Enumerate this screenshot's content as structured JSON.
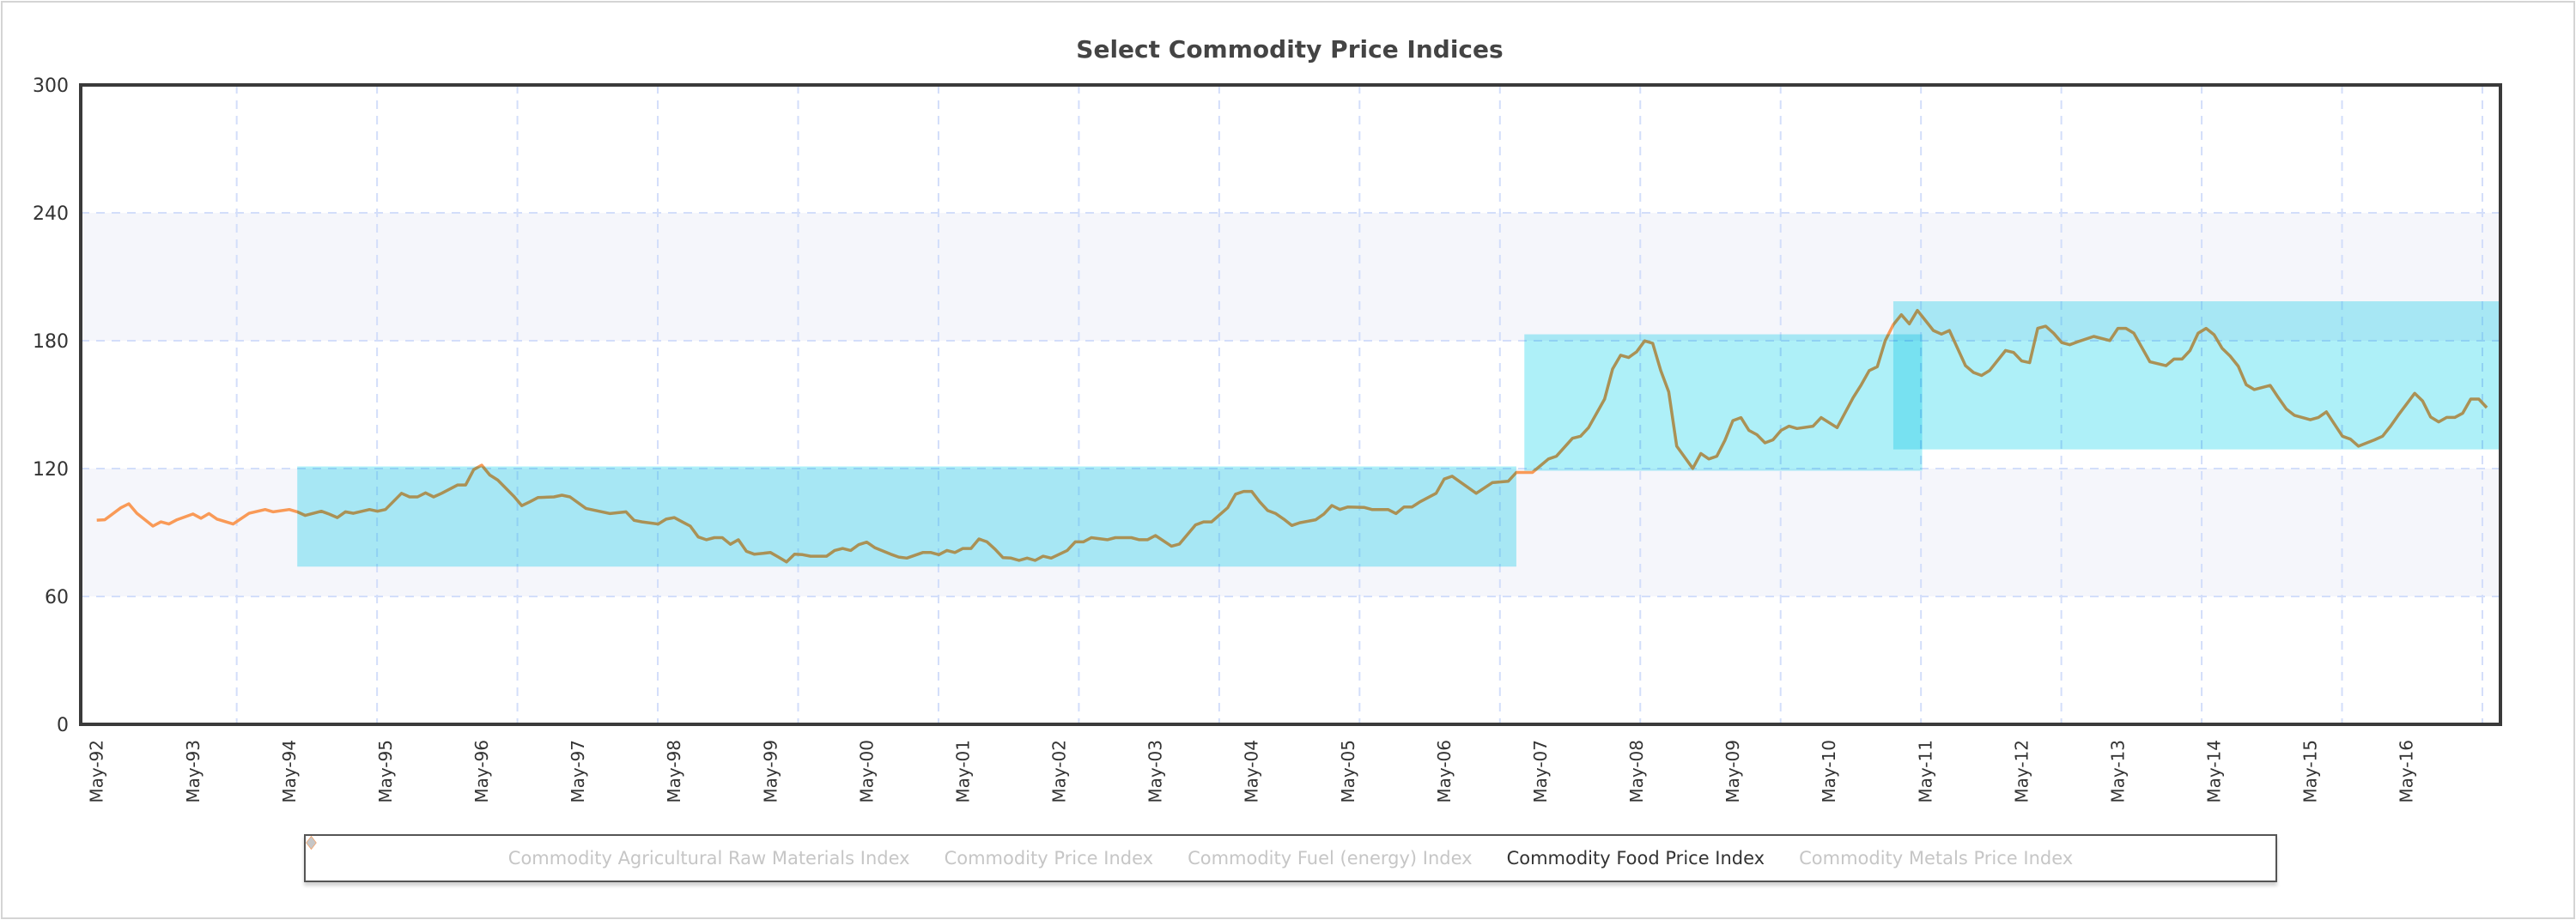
{
  "chart_data": {
    "type": "line",
    "title": "Select Commodity Price Indices",
    "xlabel": "",
    "ylabel": "",
    "x_unit": "months since May-92 (monthly data, May-92 = 0)",
    "x_range": [
      -2,
      299.7
    ],
    "ylim": [
      0,
      300
    ],
    "y_ticks": [
      0,
      60,
      120,
      180,
      240,
      300
    ],
    "x_tick_labels": [
      "May-92",
      "May-93",
      "May-94",
      "May-95",
      "May-96",
      "May-97",
      "May-98",
      "May-99",
      "May-00",
      "May-01",
      "May-02",
      "May-03",
      "May-04",
      "May-05",
      "May-06",
      "May-07",
      "May-08",
      "May-09",
      "May-10",
      "May-11",
      "May-12",
      "May-13",
      "May-14",
      "May-15",
      "May-16"
    ],
    "x_tick_step_months": 12,
    "grid": true,
    "legend_position": "bottom-center",
    "series": [
      {
        "name": "Commodity Food Price Index",
        "color": "#f99a57",
        "points": [
          [
            0,
            95.8
          ],
          [
            1,
            96
          ],
          [
            3,
            101.6
          ],
          [
            4,
            103.5
          ],
          [
            5,
            99
          ],
          [
            7,
            93
          ],
          [
            8,
            95
          ],
          [
            9,
            94
          ],
          [
            10,
            96
          ],
          [
            12,
            98.7
          ],
          [
            13,
            96.7
          ],
          [
            14,
            98.9
          ],
          [
            15,
            96.3
          ],
          [
            17,
            94
          ],
          [
            19,
            99
          ],
          [
            21,
            100.8
          ],
          [
            22,
            99.7
          ],
          [
            24,
            100.8
          ],
          [
            25,
            99.7
          ],
          [
            26,
            98
          ],
          [
            28,
            100
          ],
          [
            29,
            98.6
          ],
          [
            30,
            97
          ],
          [
            31,
            99.7
          ],
          [
            32,
            99
          ],
          [
            34,
            100.8
          ],
          [
            35,
            100
          ],
          [
            36,
            100.8
          ],
          [
            38,
            108.4
          ],
          [
            39,
            106.7
          ],
          [
            40,
            106.7
          ],
          [
            41,
            108.6
          ],
          [
            42,
            106.7
          ],
          [
            43,
            108.4
          ],
          [
            45,
            112.3
          ],
          [
            46,
            112.3
          ],
          [
            47,
            119.5
          ],
          [
            48,
            121.6
          ],
          [
            49,
            117
          ],
          [
            50,
            114.6
          ],
          [
            52,
            107
          ],
          [
            53,
            102.6
          ],
          [
            54,
            104.4
          ],
          [
            55,
            106.4
          ],
          [
            57,
            106.7
          ],
          [
            58,
            107.5
          ],
          [
            59,
            106.7
          ],
          [
            61,
            101.3
          ],
          [
            64,
            98.9
          ],
          [
            66,
            99.7
          ],
          [
            67,
            95.7
          ],
          [
            68,
            95
          ],
          [
            70,
            94
          ],
          [
            71,
            96.3
          ],
          [
            72,
            97
          ],
          [
            73,
            95
          ],
          [
            74,
            93
          ],
          [
            75,
            87.9
          ],
          [
            76,
            86.6
          ],
          [
            77,
            87.6
          ],
          [
            78,
            87.6
          ],
          [
            79,
            84.5
          ],
          [
            80,
            86.6
          ],
          [
            81,
            81.2
          ],
          [
            82,
            79.8
          ],
          [
            84,
            80.6
          ],
          [
            85,
            78.5
          ],
          [
            86,
            76.2
          ],
          [
            87,
            79.8
          ],
          [
            88,
            79.6
          ],
          [
            89,
            78.9
          ],
          [
            91,
            78.9
          ],
          [
            92,
            81.6
          ],
          [
            93,
            82.5
          ],
          [
            94,
            81.6
          ],
          [
            95,
            84.3
          ],
          [
            96,
            85.5
          ],
          [
            97,
            82.9
          ],
          [
            99,
            79.8
          ],
          [
            100,
            78.5
          ],
          [
            101,
            78
          ],
          [
            103,
            80.6
          ],
          [
            104,
            80.6
          ],
          [
            105,
            79.6
          ],
          [
            106,
            81.6
          ],
          [
            107,
            80.6
          ],
          [
            108,
            82.5
          ],
          [
            109,
            82.5
          ],
          [
            110,
            87
          ],
          [
            111,
            85.6
          ],
          [
            112,
            82.2
          ],
          [
            113,
            78.2
          ],
          [
            114,
            78
          ],
          [
            115,
            76.9
          ],
          [
            116,
            78
          ],
          [
            117,
            76.9
          ],
          [
            118,
            78.9
          ],
          [
            119,
            78
          ],
          [
            121,
            81.6
          ],
          [
            122,
            85.6
          ],
          [
            123,
            85.6
          ],
          [
            124,
            87.6
          ],
          [
            126,
            86.6
          ],
          [
            127,
            87.6
          ],
          [
            129,
            87.6
          ],
          [
            130,
            86.6
          ],
          [
            131,
            86.6
          ],
          [
            132,
            88.6
          ],
          [
            134,
            83.6
          ],
          [
            135,
            84.6
          ],
          [
            137,
            93.6
          ],
          [
            138,
            95
          ],
          [
            139,
            95
          ],
          [
            141,
            101.6
          ],
          [
            142,
            108
          ],
          [
            143,
            109.3
          ],
          [
            144,
            109.3
          ],
          [
            145,
            104.4
          ],
          [
            146,
            100.3
          ],
          [
            147,
            98.9
          ],
          [
            148,
            96.3
          ],
          [
            149,
            93.3
          ],
          [
            150,
            94.6
          ],
          [
            152,
            96
          ],
          [
            153,
            98.7
          ],
          [
            154,
            102.7
          ],
          [
            155,
            100.8
          ],
          [
            156,
            102
          ],
          [
            158,
            101.8
          ],
          [
            159,
            100.8
          ],
          [
            161,
            100.8
          ],
          [
            162,
            98.9
          ],
          [
            163,
            102
          ],
          [
            164,
            102
          ],
          [
            165,
            104.4
          ],
          [
            167,
            108.4
          ],
          [
            168,
            115.1
          ],
          [
            169,
            116.4
          ],
          [
            170,
            113.7
          ],
          [
            172,
            108.4
          ],
          [
            174,
            113.4
          ],
          [
            176,
            114.1
          ],
          [
            177,
            118.2
          ],
          [
            179,
            118.2
          ],
          [
            181,
            124.5
          ],
          [
            182,
            125.8
          ],
          [
            184,
            134.2
          ],
          [
            185,
            135.2
          ],
          [
            186,
            139.2
          ],
          [
            188,
            152.6
          ],
          [
            189,
            166.7
          ],
          [
            190,
            173.2
          ],
          [
            191,
            172.1
          ],
          [
            192,
            174.8
          ],
          [
            193,
            179.9
          ],
          [
            194,
            178.8
          ],
          [
            195,
            166
          ],
          [
            196,
            156
          ],
          [
            197,
            130.5
          ],
          [
            199,
            120.1
          ],
          [
            200,
            127.1
          ],
          [
            201,
            124.5
          ],
          [
            202,
            125.8
          ],
          [
            203,
            133.2
          ],
          [
            204,
            142.5
          ],
          [
            205,
            143.9
          ],
          [
            206,
            137.9
          ],
          [
            207,
            135.9
          ],
          [
            208,
            132.1
          ],
          [
            209,
            133.5
          ],
          [
            210,
            137.9
          ],
          [
            211,
            139.9
          ],
          [
            212,
            138.8
          ],
          [
            214,
            139.9
          ],
          [
            215,
            143.9
          ],
          [
            217,
            139.2
          ],
          [
            219,
            153.3
          ],
          [
            220,
            159.3
          ],
          [
            221,
            166
          ],
          [
            222,
            167.8
          ],
          [
            223,
            180.1
          ],
          [
            224,
            187.5
          ],
          [
            225,
            192.2
          ],
          [
            226,
            187.9
          ],
          [
            227,
            194.2
          ],
          [
            228,
            189.5
          ],
          [
            229,
            184.8
          ],
          [
            230,
            183.1
          ],
          [
            231,
            184.8
          ],
          [
            233,
            168.3
          ],
          [
            234,
            165.1
          ],
          [
            235,
            163.7
          ],
          [
            236,
            166
          ],
          [
            238,
            175.4
          ],
          [
            239,
            174.5
          ],
          [
            240,
            170.5
          ],
          [
            241,
            169.7
          ],
          [
            242,
            185.8
          ],
          [
            243,
            186.8
          ],
          [
            244,
            183.5
          ],
          [
            245,
            179.1
          ],
          [
            246,
            178.1
          ],
          [
            247,
            179.5
          ],
          [
            249,
            182
          ],
          [
            251,
            180.1
          ],
          [
            252,
            185.8
          ],
          [
            253,
            185.8
          ],
          [
            254,
            183.5
          ],
          [
            256,
            170.1
          ],
          [
            258,
            168.3
          ],
          [
            259,
            171.4
          ],
          [
            260,
            171.4
          ],
          [
            261,
            175.4
          ],
          [
            262,
            183.5
          ],
          [
            263,
            185.8
          ],
          [
            264,
            182.8
          ],
          [
            265,
            176.4
          ],
          [
            266,
            172.8
          ],
          [
            267,
            168.1
          ],
          [
            268,
            159.4
          ],
          [
            269,
            157.1
          ],
          [
            271,
            159
          ],
          [
            272,
            153.3
          ],
          [
            273,
            148
          ],
          [
            274,
            145
          ],
          [
            276,
            142.9
          ],
          [
            277,
            144
          ],
          [
            278,
            146.6
          ],
          [
            280,
            135.2
          ],
          [
            281,
            133.8
          ],
          [
            282,
            130.5
          ],
          [
            284,
            133.5
          ],
          [
            285,
            135.2
          ],
          [
            286,
            139.9
          ],
          [
            287,
            145.3
          ],
          [
            289,
            155.3
          ],
          [
            290,
            151.7
          ],
          [
            291,
            144.2
          ],
          [
            292,
            141.9
          ],
          [
            293,
            144
          ],
          [
            294,
            144
          ],
          [
            295,
            146
          ],
          [
            296,
            152.6
          ],
          [
            297,
            152.6
          ],
          [
            298,
            148.6
          ]
        ]
      }
    ],
    "highlight_bands": [
      {
        "x_start": 25,
        "x_end": 177,
        "y_low": 74,
        "y_high": 121,
        "color": "#aef0f8"
      },
      {
        "x_start": 178,
        "x_end": 227.6,
        "y_low": 119,
        "y_high": 183,
        "color": "#aef0f8"
      },
      {
        "x_start": 224,
        "x_end": 299.7,
        "y_low": 129,
        "y_high": 198.5,
        "color": "#aef0f8"
      }
    ]
  },
  "legend": {
    "items": [
      {
        "label": "Commodity Agricultural Raw Materials Index",
        "color": "#c6c6c6",
        "active": false
      },
      {
        "label": "Commodity Price Index",
        "color": "#c6c6c6",
        "active": false
      },
      {
        "label": "Commodity Fuel (energy) Index",
        "color": "#c6c6c6",
        "active": false
      },
      {
        "label": "Commodity Food Price Index",
        "color": "#f99a57",
        "active": true
      },
      {
        "label": "Commodity Metals Price Index",
        "color": "#c6c6c6",
        "active": false
      }
    ]
  }
}
